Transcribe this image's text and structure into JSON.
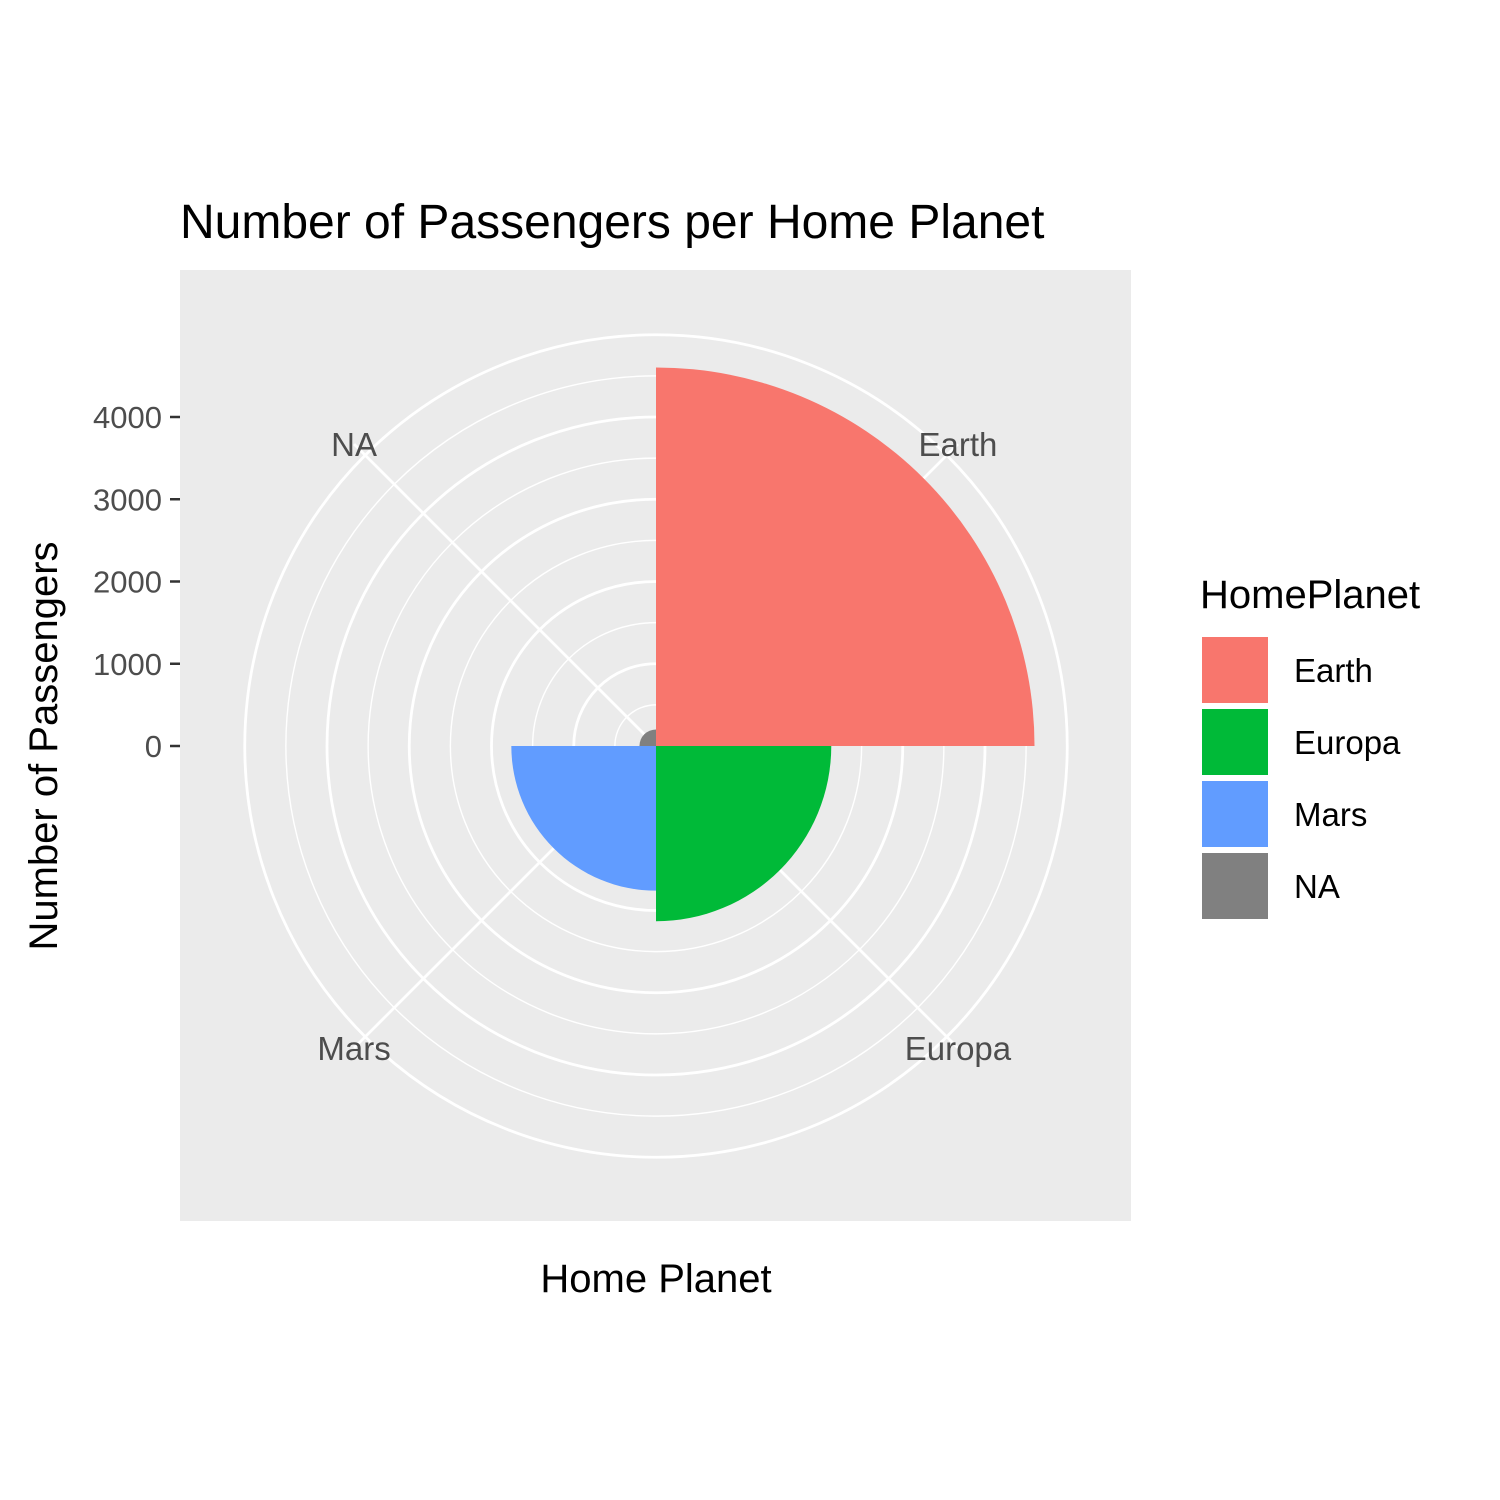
{
  "chart_data": {
    "type": "bar",
    "coord": "polar",
    "title": "Number of Passengers per Home Planet",
    "xlabel": "Home Planet",
    "ylabel": "Number of Passengers",
    "categories": [
      "Earth",
      "Europa",
      "Mars",
      "NA"
    ],
    "values": [
      4602,
      2131,
      1759,
      201
    ],
    "colors": [
      "#F8766D",
      "#00BA38",
      "#619CFF",
      "#808080"
    ],
    "ylim": [
      0,
      5000
    ],
    "yticks": [
      "0",
      "1000",
      "2000",
      "3000",
      "4000"
    ],
    "grid": true,
    "panel_background": "#EBEBEB",
    "legend": {
      "title": "HomePlanet",
      "position": "right",
      "entries": [
        "Earth",
        "Europa",
        "Mars",
        "NA"
      ]
    }
  }
}
